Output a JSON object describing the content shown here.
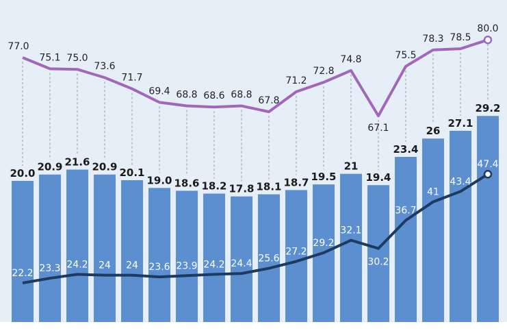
{
  "chart_data": {
    "type": "bar",
    "categories": [
      "",
      "",
      "",
      "",
      "",
      "",
      "",
      "",
      "",
      "",
      "",
      "",
      "",
      "",
      "",
      "",
      "",
      ""
    ],
    "series": [
      {
        "type": "bar",
        "values": [
          20.0,
          20.9,
          21.6,
          20.9,
          20.1,
          19.0,
          18.6,
          18.2,
          17.8,
          18.1,
          18.7,
          19.5,
          21,
          19.4,
          23.4,
          26,
          27.1,
          29.2
        ],
        "labels": [
          "20.0",
          "20.9",
          "21.6",
          "20.9",
          "20.1",
          "19.0",
          "18.6",
          "18.2",
          "17.8",
          "18.1",
          "18.7",
          "19.5",
          "21",
          "19.4",
          "23.4",
          "26",
          "27.1",
          "29.2"
        ]
      },
      {
        "type": "line",
        "values": [
          77.0,
          75.1,
          75.0,
          73.6,
          71.7,
          69.4,
          68.8,
          68.6,
          68.8,
          67.8,
          71.2,
          72.8,
          74.8,
          67.1,
          75.5,
          78.3,
          78.5,
          80.0
        ],
        "labels": [
          "77.0",
          "75.1",
          "75.0",
          "73.6",
          "71.7",
          "69.4",
          "68.8",
          "68.6",
          "68.8",
          "67.8",
          "71.2",
          "72.8",
          "74.8",
          "67.1",
          "75.5",
          "78.3",
          "78.5",
          "80.0"
        ]
      },
      {
        "type": "line",
        "values": [
          22.2,
          23.3,
          24.2,
          24,
          24,
          23.6,
          23.9,
          24.2,
          24.4,
          25.6,
          27.2,
          29.2,
          32.1,
          30.2,
          36.7,
          41,
          43.4,
          47.4
        ],
        "labels": [
          "22.2",
          "23.3",
          "24.2",
          "24",
          "24",
          "23.6",
          "23.9",
          "24.2",
          "24.4",
          "25.6",
          "27.2",
          "29.2",
          "32.1",
          "30.2",
          "36.7",
          "41",
          "43.4",
          "47.4"
        ]
      }
    ],
    "grid": false,
    "colors": {
      "background": "#e6eef8",
      "bar": "#5b8fd0",
      "top_line": "#a167b9",
      "bottom_line": "#1d3b60",
      "guide": "#9a9a9a"
    }
  }
}
